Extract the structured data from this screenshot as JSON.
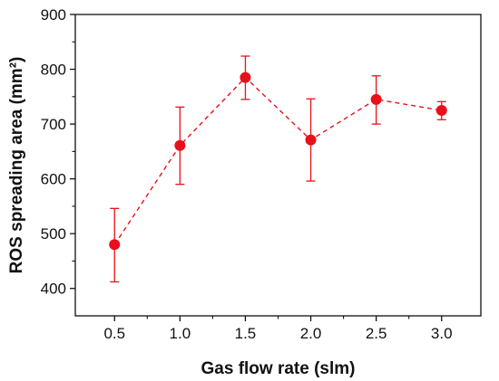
{
  "chart_data": {
    "type": "scatter",
    "title": "",
    "xlabel": "Gas flow rate (slm)",
    "ylabel": "ROS spreading area (mm²)",
    "xlim": [
      0.2,
      3.3
    ],
    "ylim": [
      350,
      900
    ],
    "xticks": [
      0.5,
      1.0,
      1.5,
      2.0,
      2.5,
      3.0
    ],
    "xtick_labels": [
      "0.5",
      "1.0",
      "1.5",
      "2.0",
      "2.5",
      "3.0"
    ],
    "yticks": [
      400,
      500,
      600,
      700,
      800,
      900
    ],
    "ytick_labels": [
      "400",
      "500",
      "600",
      "700",
      "800",
      "900"
    ],
    "grid": false,
    "legend": "none",
    "series": [
      {
        "color": "#e8101a",
        "line_style": "dashed",
        "marker": "circle",
        "x": [
          0.5,
          1.0,
          1.5,
          2.0,
          2.5,
          3.0
        ],
        "y": [
          480,
          661,
          785,
          671,
          745,
          725
        ],
        "error_low": [
          412,
          590,
          745,
          596,
          700,
          708
        ],
        "error_high": [
          546,
          731,
          824,
          746,
          788,
          741
        ]
      }
    ]
  }
}
